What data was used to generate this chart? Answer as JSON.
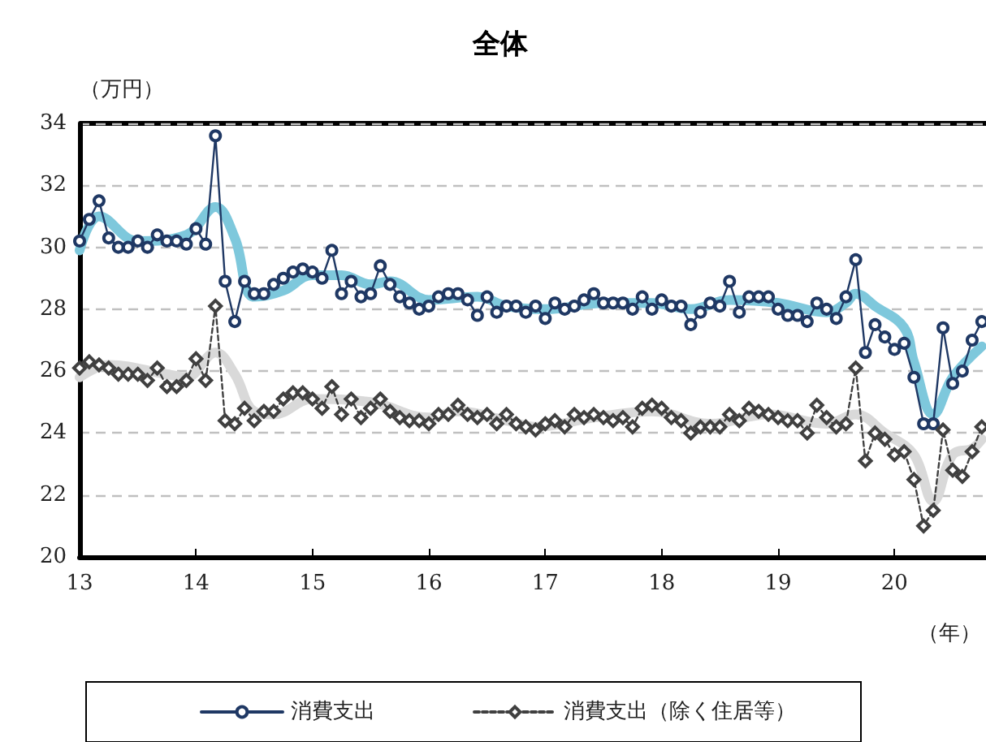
{
  "chart_data": {
    "type": "line",
    "title": "全体",
    "ylabel": "（万円）",
    "xlabel": "（年）",
    "x": [
      13,
      13.083,
      13.167,
      13.25,
      13.333,
      13.417,
      13.5,
      13.583,
      13.667,
      13.75,
      13.833,
      13.917,
      14,
      14.083,
      14.167,
      14.25,
      14.333,
      14.417,
      14.5,
      14.583,
      14.667,
      14.75,
      14.833,
      14.917,
      15,
      15.083,
      15.167,
      15.25,
      15.333,
      15.417,
      15.5,
      15.583,
      15.667,
      15.75,
      15.833,
      15.917,
      16,
      16.083,
      16.167,
      16.25,
      16.333,
      16.417,
      16.5,
      16.583,
      16.667,
      16.75,
      16.833,
      16.917,
      17,
      17.083,
      17.167,
      17.25,
      17.333,
      17.417,
      17.5,
      17.583,
      17.667,
      17.75,
      17.833,
      17.917,
      18,
      18.083,
      18.167,
      18.25,
      18.333,
      18.417,
      18.5,
      18.583,
      18.667,
      18.75,
      18.833,
      18.917,
      19,
      19.083,
      19.167,
      19.25,
      19.333,
      19.417,
      19.5,
      19.583,
      19.667,
      19.75,
      19.833,
      19.917,
      20,
      20.083,
      20.167,
      20.25,
      20.333,
      20.417,
      20.5,
      20.583,
      20.667,
      20.75
    ],
    "series": [
      {
        "x": [
          13,
          13.167,
          13.5,
          13.917,
          14.167,
          14.333,
          14.5,
          14.75,
          15,
          15.25,
          15.5,
          15.667,
          16,
          16.417,
          16.667,
          17,
          17.5,
          17.917,
          18.25,
          18.583,
          19,
          19.417,
          19.583,
          19.667,
          19.833,
          20.083,
          20.167,
          20.333,
          20.5,
          20.75
        ],
        "color": "#7ec8dc",
        "marker": "none",
        "line_style": "solid",
        "values": [
          29.9,
          31.0,
          30.2,
          30.4,
          31.3,
          30.3,
          28.4,
          28.6,
          29.1,
          29.1,
          28.8,
          28.9,
          28.3,
          28.4,
          28.1,
          28.0,
          28.2,
          28.2,
          28.0,
          28.3,
          28.2,
          27.9,
          28.2,
          28.5,
          28.1,
          27.4,
          26.3,
          24.6,
          25.8,
          26.8
        ]
      },
      {
        "x": [
          13,
          13.25,
          13.75,
          13.917,
          14.167,
          14.333,
          14.5,
          14.667,
          15,
          15.5,
          16,
          16.25,
          16.667,
          16.917,
          17.417,
          17.917,
          18.417,
          18.917,
          19.417,
          19.667,
          19.917,
          20.167,
          20.333,
          20.5,
          20.667,
          20.75
        ],
        "color": "#d9d9d9",
        "marker": "none",
        "line_style": "solid",
        "values": [
          25.8,
          26.2,
          25.9,
          25.8,
          26.6,
          25.9,
          24.7,
          24.6,
          25.1,
          25.0,
          24.5,
          24.7,
          24.4,
          24.2,
          24.5,
          24.7,
          24.3,
          24.6,
          24.3,
          24.6,
          24.0,
          23.3,
          21.8,
          23.3,
          23.5,
          23.8
        ]
      },
      {
        "name": "消費支出",
        "color": "#1f3864",
        "marker": "circle",
        "line_style": "solid",
        "values": [
          30.2,
          30.9,
          31.5,
          30.3,
          30.0,
          30.0,
          30.2,
          30.0,
          30.4,
          30.2,
          30.2,
          30.1,
          30.6,
          30.1,
          33.6,
          28.9,
          27.6,
          28.9,
          28.5,
          28.5,
          28.8,
          29.0,
          29.2,
          29.3,
          29.2,
          29.0,
          29.9,
          28.5,
          28.9,
          28.4,
          28.5,
          29.4,
          28.8,
          28.4,
          28.2,
          28.0,
          28.1,
          28.4,
          28.5,
          28.5,
          28.3,
          27.8,
          28.4,
          27.9,
          28.1,
          28.1,
          27.9,
          28.1,
          27.7,
          28.2,
          28.0,
          28.1,
          28.3,
          28.5,
          28.2,
          28.2,
          28.2,
          28.0,
          28.4,
          28.0,
          28.3,
          28.1,
          28.1,
          27.5,
          27.9,
          28.2,
          28.1,
          28.9,
          27.9,
          28.4,
          28.4,
          28.4,
          28.0,
          27.8,
          27.8,
          27.6,
          28.2,
          28.0,
          27.7,
          28.4,
          29.6,
          26.6,
          27.5,
          27.1,
          26.7,
          26.9,
          25.8,
          24.3,
          24.3,
          27.4,
          25.6,
          26.0,
          27.0,
          27.6
        ]
      },
      {
        "name": "消費支出（除く住居等）",
        "color": "#404040",
        "marker": "diamond",
        "line_style": "dashed",
        "values": [
          26.1,
          26.3,
          26.2,
          26.1,
          25.9,
          25.9,
          25.9,
          25.7,
          26.1,
          25.5,
          25.5,
          25.7,
          26.4,
          25.7,
          28.1,
          24.4,
          24.3,
          24.8,
          24.4,
          24.7,
          24.7,
          25.1,
          25.3,
          25.3,
          25.1,
          24.8,
          25.5,
          24.6,
          25.1,
          24.5,
          24.8,
          25.1,
          24.7,
          24.5,
          24.4,
          24.4,
          24.3,
          24.6,
          24.6,
          24.9,
          24.6,
          24.5,
          24.6,
          24.3,
          24.6,
          24.3,
          24.2,
          24.1,
          24.3,
          24.4,
          24.2,
          24.6,
          24.5,
          24.6,
          24.5,
          24.4,
          24.5,
          24.2,
          24.8,
          24.9,
          24.8,
          24.5,
          24.4,
          24.0,
          24.2,
          24.2,
          24.2,
          24.6,
          24.4,
          24.8,
          24.7,
          24.6,
          24.5,
          24.4,
          24.4,
          24.0,
          24.9,
          24.5,
          24.2,
          24.3,
          26.1,
          23.1,
          24.0,
          23.8,
          23.3,
          23.4,
          22.5,
          21.0,
          21.5,
          24.1,
          22.8,
          22.6,
          23.4,
          24.2
        ]
      }
    ],
    "xlim": [
      13,
      20.8
    ],
    "xticks": [
      13,
      14,
      15,
      16,
      17,
      18,
      19,
      20
    ],
    "ylim": [
      20,
      34
    ],
    "yticks": [
      20,
      22,
      24,
      26,
      28,
      30,
      32,
      34
    ],
    "grid": "y",
    "legend": "bottom"
  }
}
